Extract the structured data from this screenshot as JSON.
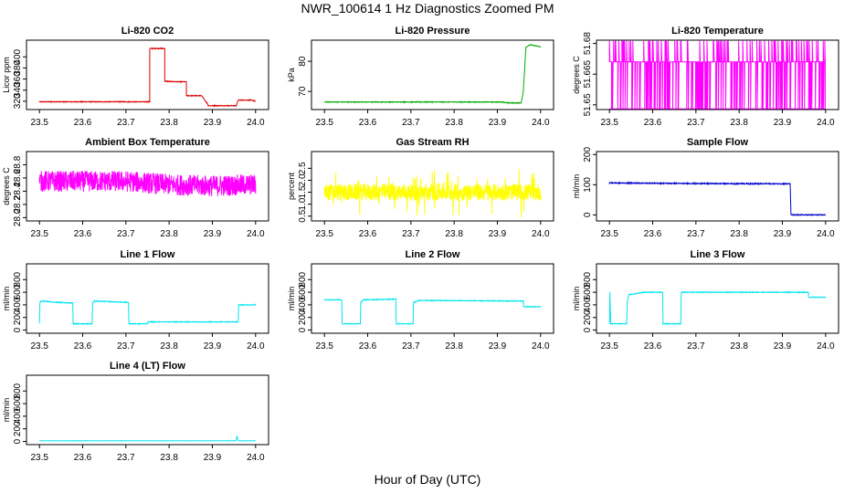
{
  "page": {
    "title": "NWR_100614  1 Hz Diagnostics Zoomed PM",
    "xlabel": "Hour of Day (UTC)"
  },
  "chart_data": [
    {
      "type": "line",
      "title": "Li-820 CO2",
      "ylabel": "Licor ppm",
      "xlim": [
        23.47,
        24.03
      ],
      "ylim": [
        305,
        430
      ],
      "xticks": [
        "23.5",
        "23.6",
        "23.7",
        "23.8",
        "23.9",
        "24.0"
      ],
      "yticks": [
        {
          "v": 320,
          "label": "320"
        },
        {
          "v": 340,
          "label": "340"
        },
        {
          "v": 360,
          "label": "360"
        },
        {
          "v": 380,
          "label": "380"
        },
        {
          "v": 400,
          "label": "400"
        }
      ],
      "color": "#dd0000",
      "noise": 0.6,
      "x": [
        23.5,
        23.755,
        23.755,
        23.79,
        23.79,
        23.82,
        23.82,
        23.84,
        23.84,
        23.875,
        23.875,
        23.89,
        23.89,
        23.955,
        23.955,
        23.96,
        23.96,
        23.99,
        24.0
      ],
      "y": [
        319,
        319,
        415,
        415,
        356,
        355,
        355,
        355,
        330,
        330,
        330,
        314,
        312,
        312,
        312,
        322,
        322,
        322,
        320
      ]
    },
    {
      "type": "line",
      "title": "Li-820 Pressure",
      "ylabel": "kPa",
      "xlim": [
        23.47,
        24.03
      ],
      "ylim": [
        64,
        87
      ],
      "xticks": [
        "23.5",
        "23.6",
        "23.7",
        "23.8",
        "23.9",
        "24.0"
      ],
      "yticks": [
        {
          "v": 70,
          "label": "70"
        },
        {
          "v": 80,
          "label": "80"
        }
      ],
      "color": "#00aa00",
      "noise": 0.1,
      "x": [
        23.5,
        23.83,
        23.91,
        23.925,
        23.955,
        23.96,
        23.966,
        23.975,
        24.0
      ],
      "y": [
        66.5,
        66.5,
        66.5,
        66.2,
        66.2,
        70,
        84.6,
        85.5,
        84.8
      ]
    },
    {
      "type": "line",
      "title": "Li-820 Temperature",
      "ylabel": "degrees C",
      "xlim": [
        23.47,
        24.03
      ],
      "ylim": [
        51.6477,
        51.6816
      ],
      "xticks": [
        "23.5",
        "23.6",
        "23.7",
        "23.8",
        "23.9",
        "24.0"
      ],
      "yticks": [
        {
          "v": 51.65,
          "label": "51.65"
        },
        {
          "v": 51.665,
          "label": "51.665"
        },
        {
          "v": 51.68,
          "label": "51.68"
        }
      ],
      "color": "#ff00ff",
      "noise": 0,
      "x": [
        23.5,
        24.0
      ],
      "y": [
        51.671,
        51.671
      ]
    },
    {
      "type": "line",
      "title": "Ambient Box Temperature",
      "ylabel": "degrees C",
      "xlim": [
        23.47,
        24.03
      ],
      "ylim": [
        27.95,
        29.0
      ],
      "xticks": [
        "23.5",
        "23.6",
        "23.7",
        "23.8",
        "23.9",
        "24.0"
      ],
      "yticks": [
        {
          "v": 28.0,
          "label": "28.0"
        },
        {
          "v": 28.2,
          "label": "28.2"
        },
        {
          "v": 28.4,
          "label": "28.4"
        },
        {
          "v": 28.6,
          "label": "28.6"
        },
        {
          "v": 28.8,
          "label": "28.8"
        }
      ],
      "color": "#ff00ff",
      "noise": 0.16,
      "x": [
        23.5,
        23.7,
        23.8,
        23.9,
        24.0
      ],
      "y": [
        28.55,
        28.55,
        28.5,
        28.48,
        28.5
      ]
    },
    {
      "type": "line",
      "title": "Gas Stream RH",
      "ylabel": "percent",
      "xlim": [
        23.47,
        24.03
      ],
      "ylim": [
        0.3,
        3.2
      ],
      "xticks": [
        "23.5",
        "23.6",
        "23.7",
        "23.8",
        "23.9",
        "24.0"
      ],
      "yticks": [
        {
          "v": 0.5,
          "label": "0.5"
        },
        {
          "v": 1.0,
          "label": "1.0"
        },
        {
          "v": 1.5,
          "label": "1.5"
        },
        {
          "v": 2.0,
          "label": "2.0"
        },
        {
          "v": 2.5,
          "label": "2.5"
        }
      ],
      "color": "#ffff00",
      "noise": 0.35,
      "x": [
        23.5,
        24.0
      ],
      "y": [
        1.5,
        1.5
      ]
    },
    {
      "type": "line",
      "title": "Sample Flow",
      "ylabel": "ml/min",
      "xlim": [
        23.47,
        24.03
      ],
      "ylim": [
        -20,
        210
      ],
      "xticks": [
        "23.5",
        "23.6",
        "23.7",
        "23.8",
        "23.9",
        "24.0"
      ],
      "yticks": [
        {
          "v": 0,
          "label": "0"
        },
        {
          "v": 100,
          "label": "100"
        },
        {
          "v": 200,
          "label": "200"
        }
      ],
      "color": "#0000cc",
      "noise": 1.5,
      "x": [
        23.5,
        23.7,
        23.918,
        23.92,
        24.0
      ],
      "y": [
        106,
        104,
        103,
        0,
        0
      ]
    },
    {
      "type": "line",
      "title": "Line 1 Flow",
      "ylabel": "ml/min",
      "xlim": [
        23.47,
        24.03
      ],
      "ylim": [
        -50,
        1050
      ],
      "xticks": [
        "23.5",
        "23.6",
        "23.7",
        "23.8",
        "23.9",
        "24.0"
      ],
      "yticks": [
        {
          "v": 0,
          "label": "0"
        },
        {
          "v": 200,
          "label": "200"
        },
        {
          "v": 400,
          "label": "400"
        },
        {
          "v": 600,
          "label": "600"
        },
        {
          "v": 800,
          "label": "800"
        }
      ],
      "color": "#00e5ee",
      "noise": 5,
      "x": [
        23.5,
        23.501,
        23.505,
        23.54,
        23.577,
        23.578,
        23.622,
        23.623,
        23.628,
        23.7,
        23.706,
        23.707,
        23.75,
        23.751,
        23.96,
        23.961,
        24.0
      ],
      "y": [
        110,
        440,
        460,
        440,
        430,
        100,
        100,
        440,
        460,
        440,
        440,
        100,
        100,
        130,
        130,
        400,
        400
      ]
    },
    {
      "type": "line",
      "title": "Line 2 Flow",
      "ylabel": "ml/min",
      "xlim": [
        23.47,
        24.03
      ],
      "ylim": [
        -50,
        1050
      ],
      "xticks": [
        "23.5",
        "23.6",
        "23.7",
        "23.8",
        "23.9",
        "24.0"
      ],
      "yticks": [
        {
          "v": 0,
          "label": "0"
        },
        {
          "v": 200,
          "label": "200"
        },
        {
          "v": 400,
          "label": "400"
        },
        {
          "v": 600,
          "label": "600"
        },
        {
          "v": 800,
          "label": "800"
        }
      ],
      "color": "#00e5ee",
      "noise": 5,
      "x": [
        23.5,
        23.54,
        23.541,
        23.583,
        23.584,
        23.59,
        23.665,
        23.666,
        23.705,
        23.706,
        23.72,
        23.96,
        23.961,
        24.0
      ],
      "y": [
        480,
        480,
        100,
        100,
        440,
        480,
        490,
        100,
        100,
        440,
        470,
        460,
        370,
        370
      ]
    },
    {
      "type": "line",
      "title": "Line 3 Flow",
      "ylabel": "ml/min",
      "xlim": [
        23.47,
        24.03
      ],
      "ylim": [
        -50,
        1050
      ],
      "xticks": [
        "23.5",
        "23.6",
        "23.7",
        "23.8",
        "23.9",
        "24.0"
      ],
      "yticks": [
        {
          "v": 0,
          "label": "0"
        },
        {
          "v": 200,
          "label": "200"
        },
        {
          "v": 400,
          "label": "400"
        },
        {
          "v": 600,
          "label": "600"
        },
        {
          "v": 800,
          "label": "800"
        }
      ],
      "color": "#00e5ee",
      "noise": 5,
      "x": [
        23.5,
        23.501,
        23.503,
        23.54,
        23.541,
        23.545,
        23.58,
        23.623,
        23.624,
        23.665,
        23.666,
        23.68,
        23.96,
        23.961,
        24.0
      ],
      "y": [
        100,
        600,
        100,
        100,
        440,
        560,
        600,
        600,
        100,
        100,
        600,
        600,
        600,
        520,
        520
      ]
    },
    {
      "type": "line",
      "title": "Line 4 (LT) Flow",
      "ylabel": "ml/min",
      "xlim": [
        23.47,
        24.03
      ],
      "ylim": [
        -50,
        1050
      ],
      "xticks": [
        "23.5",
        "23.6",
        "23.7",
        "23.8",
        "23.9",
        "24.0"
      ],
      "yticks": [
        {
          "v": 0,
          "label": "0"
        },
        {
          "v": 200,
          "label": "200"
        },
        {
          "v": 400,
          "label": "400"
        },
        {
          "v": 600,
          "label": "600"
        },
        {
          "v": 800,
          "label": "800"
        }
      ],
      "color": "#00e5ee",
      "noise": 1.5,
      "x": [
        23.5,
        23.95,
        23.955,
        23.957,
        23.96,
        24.0
      ],
      "y": [
        10,
        10,
        15,
        90,
        10,
        10
      ]
    }
  ]
}
